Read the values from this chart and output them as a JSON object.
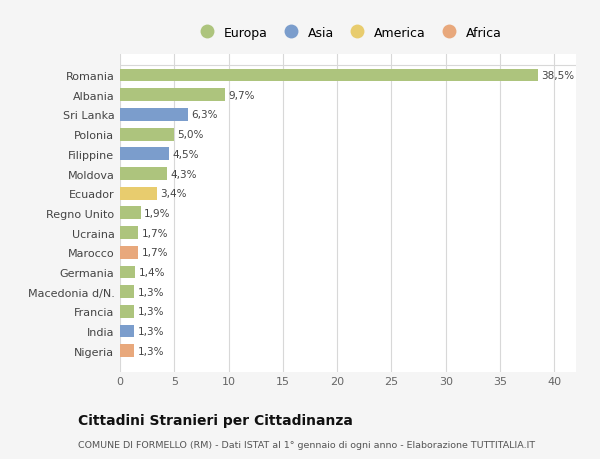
{
  "countries": [
    "Romania",
    "Albania",
    "Sri Lanka",
    "Polonia",
    "Filippine",
    "Moldova",
    "Ecuador",
    "Regno Unito",
    "Ucraina",
    "Marocco",
    "Germania",
    "Macedonia d/N.",
    "Francia",
    "India",
    "Nigeria"
  ],
  "values": [
    38.5,
    9.7,
    6.3,
    5.0,
    4.5,
    4.3,
    3.4,
    1.9,
    1.7,
    1.7,
    1.4,
    1.3,
    1.3,
    1.3,
    1.3
  ],
  "labels": [
    "38,5%",
    "9,7%",
    "6,3%",
    "5,0%",
    "4,5%",
    "4,3%",
    "3,4%",
    "1,9%",
    "1,7%",
    "1,7%",
    "1,4%",
    "1,3%",
    "1,3%",
    "1,3%",
    "1,3%"
  ],
  "continent": [
    "Europa",
    "Europa",
    "Asia",
    "Europa",
    "Asia",
    "Europa",
    "America",
    "Europa",
    "Europa",
    "Africa",
    "Europa",
    "Europa",
    "Europa",
    "Asia",
    "Africa"
  ],
  "colors": {
    "Europa": "#adc47d",
    "Asia": "#7b9dcc",
    "America": "#e8cc6e",
    "Africa": "#e8a87c"
  },
  "legend_order": [
    "Europa",
    "Asia",
    "America",
    "Africa"
  ],
  "title": "Cittadini Stranieri per Cittadinanza",
  "subtitle": "COMUNE DI FORMELLO (RM) - Dati ISTAT al 1° gennaio di ogni anno - Elaborazione TUTTITALIA.IT",
  "xlim": [
    0,
    42
  ],
  "xticks": [
    0,
    5,
    10,
    15,
    20,
    25,
    30,
    35,
    40
  ],
  "bg_color": "#f5f5f5",
  "plot_bg_color": "#ffffff",
  "grid_color": "#d8d8d8",
  "bar_height": 0.65
}
